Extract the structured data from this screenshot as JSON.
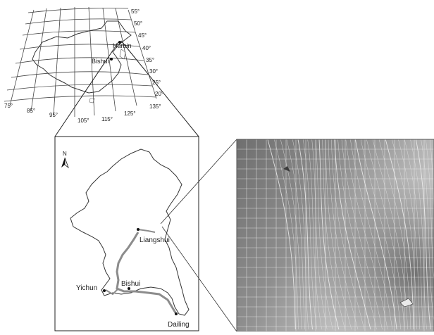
{
  "overview_map": {
    "latitude_labels": [
      "55°",
      "50°",
      "45°",
      "40°",
      "35°",
      "30°",
      "25°",
      "20°"
    ],
    "longitude_labels": [
      "75°",
      "85°",
      "95°",
      "105°",
      "115°",
      "125°",
      "135°"
    ],
    "places": [
      "Harbin",
      "Bishui"
    ]
  },
  "regional_map": {
    "north_label": "N",
    "places": [
      "Liangshui",
      "Bishui",
      "Yichun",
      "Dailing"
    ]
  },
  "terrain_panel": {
    "grid": true,
    "colors": {
      "dark": "#6f6f6f",
      "mid": "#9a9a9a",
      "light": "#d2d2d2"
    }
  },
  "colors": {
    "outline": "#333333",
    "river": "#8c8c8c",
    "background": "#ffffff"
  }
}
